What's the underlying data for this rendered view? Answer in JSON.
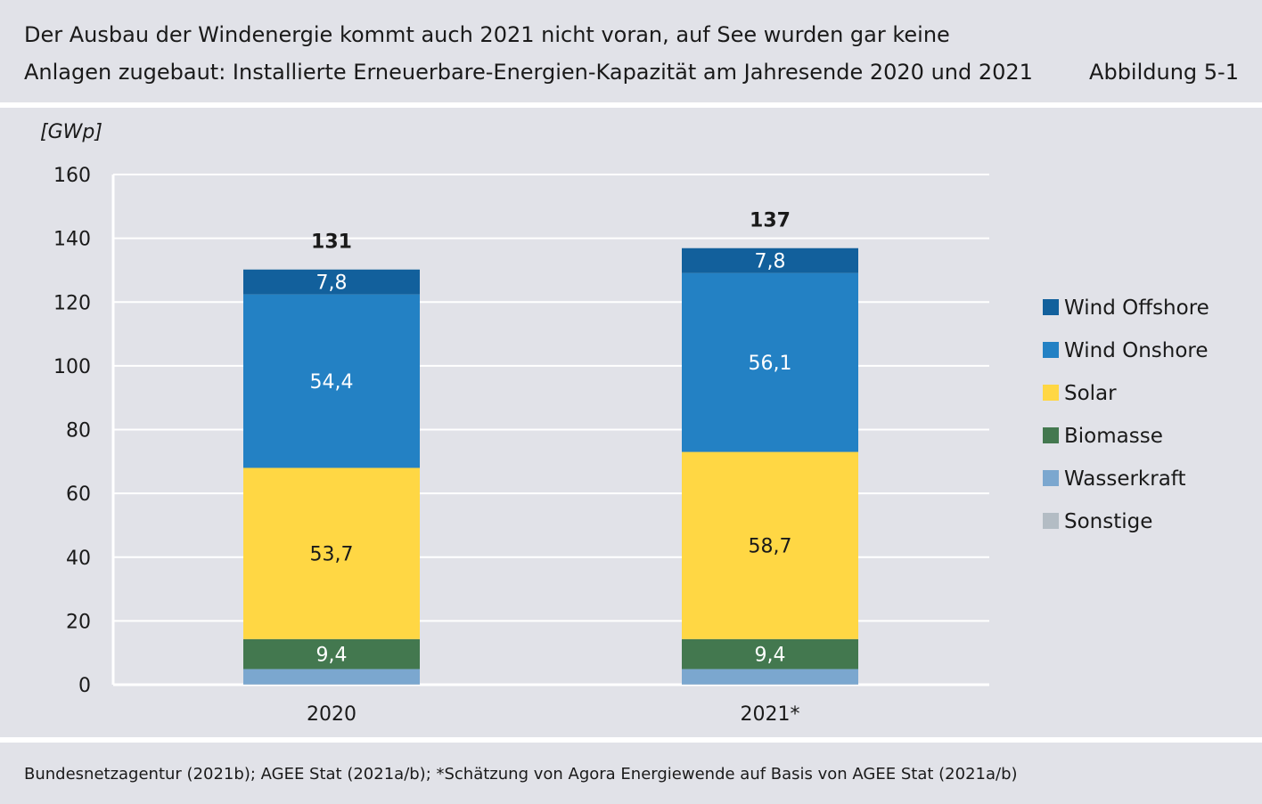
{
  "header": {
    "title_line1": "Der Ausbau der Windenergie kommt auch 2021 nicht voran, auf See wurden gar keine",
    "title_line2": "Anlagen zugebaut: Installierte Erneuerbare-Energien-Kapazität am Jahresende 2020 und 2021",
    "figure_label": "Abbildung 5-1"
  },
  "footer": {
    "source": "Bundesnetzagentur (2021b); AGEE Stat (2021a/b); *Schätzung von Agora Energiewende auf Basis von AGEE Stat (2021a/b)"
  },
  "chart_data": {
    "type": "bar",
    "stacked": true,
    "ylabel": "[GWp]",
    "ylim": [
      0,
      160
    ],
    "yticks": [
      0,
      20,
      40,
      60,
      80,
      100,
      120,
      140,
      160
    ],
    "grid": true,
    "legend_position": "right",
    "categories": [
      "2020",
      "2021*"
    ],
    "totals": [
      "131",
      "137"
    ],
    "series": [
      {
        "name": "Sonstige",
        "color": "#b3bcc4",
        "values": [
          0.1,
          0.1
        ],
        "labels": [
          "",
          ""
        ]
      },
      {
        "name": "Wasserkraft",
        "color": "#7ba7cf",
        "values": [
          4.8,
          4.8
        ],
        "labels": [
          "",
          ""
        ]
      },
      {
        "name": "Biomasse",
        "color": "#43784f",
        "values": [
          9.4,
          9.4
        ],
        "labels": [
          "9,4",
          "9,4"
        ]
      },
      {
        "name": "Solar",
        "color": "#ffd744",
        "values": [
          53.7,
          58.7
        ],
        "labels": [
          "53,7",
          "58,7"
        ]
      },
      {
        "name": "Wind Onshore",
        "color": "#2381c4",
        "values": [
          54.4,
          56.1
        ],
        "labels": [
          "54,4",
          "56,1"
        ]
      },
      {
        "name": "Wind Offshore",
        "color": "#12609c",
        "values": [
          7.8,
          7.8
        ],
        "labels": [
          "7,8",
          "7,8"
        ]
      }
    ]
  }
}
